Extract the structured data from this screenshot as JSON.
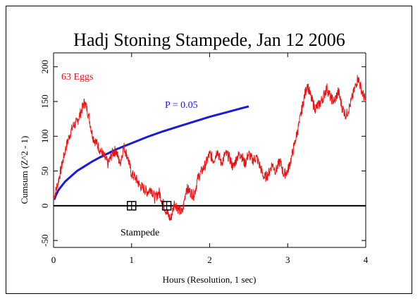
{
  "chart_data": {
    "type": "line",
    "title": "Hadj Stoning Stampede, Jan 12 2006",
    "xlabel": "Hours (Resolution, 1 sec)",
    "ylabel": "Cumsum (Z^2 - 1)",
    "xlim": [
      0,
      4
    ],
    "ylim": [
      -60,
      220
    ],
    "xticks": [
      0,
      1,
      2,
      3,
      4
    ],
    "yticks": [
      -50,
      0,
      50,
      100,
      150,
      200
    ],
    "grid": false,
    "series": [
      {
        "name": "63 Eggs",
        "color": "#ee1111",
        "x": [
          0,
          0.05,
          0.1,
          0.15,
          0.2,
          0.25,
          0.3,
          0.35,
          0.4,
          0.45,
          0.5,
          0.55,
          0.6,
          0.65,
          0.7,
          0.75,
          0.8,
          0.85,
          0.9,
          0.95,
          1.0,
          1.05,
          1.1,
          1.15,
          1.2,
          1.25,
          1.3,
          1.35,
          1.4,
          1.45,
          1.5,
          1.55,
          1.6,
          1.65,
          1.7,
          1.75,
          1.8,
          1.85,
          1.9,
          1.95,
          2.0,
          2.05,
          2.1,
          2.15,
          2.2,
          2.25,
          2.3,
          2.35,
          2.4,
          2.45,
          2.5,
          2.55,
          2.6,
          2.65,
          2.7,
          2.75,
          2.8,
          2.85,
          2.9,
          2.95,
          3.0,
          3.05,
          3.1,
          3.15,
          3.2,
          3.25,
          3.3,
          3.35,
          3.4,
          3.45,
          3.5,
          3.55,
          3.6,
          3.65,
          3.7,
          3.75,
          3.8,
          3.85,
          3.9,
          3.95,
          4.0
        ],
        "values": [
          10,
          30,
          55,
          80,
          100,
          115,
          120,
          135,
          150,
          130,
          100,
          90,
          80,
          70,
          60,
          75,
          80,
          60,
          85,
          70,
          45,
          40,
          30,
          25,
          20,
          25,
          10,
          20,
          5,
          -10,
          -20,
          5,
          -5,
          -10,
          25,
          20,
          15,
          40,
          50,
          60,
          75,
          65,
          80,
          60,
          75,
          70,
          55,
          70,
          75,
          60,
          75,
          65,
          70,
          55,
          40,
          45,
          60,
          50,
          65,
          45,
          50,
          70,
          95,
          120,
          150,
          175,
          155,
          140,
          145,
          155,
          170,
          155,
          150,
          165,
          140,
          130,
          145,
          165,
          185,
          165,
          150
        ]
      },
      {
        "name": "P = 0.05",
        "color": "#1a1adb",
        "x": [
          0.01,
          0.03,
          0.06,
          0.1,
          0.15,
          0.2,
          0.3,
          0.4,
          0.5,
          0.6,
          0.8,
          1.0,
          1.2,
          1.4,
          1.6,
          1.8,
          2.0,
          2.2,
          2.4,
          2.5
        ],
        "values": [
          9,
          15,
          22,
          28,
          35,
          40,
          50,
          57,
          64,
          70,
          81,
          90,
          99,
          107,
          114,
          121,
          128,
          134,
          140,
          143
        ]
      }
    ],
    "baseline": 0,
    "markers": [
      {
        "x": 1.0,
        "y": 0
      },
      {
        "x": 1.45,
        "y": 0
      }
    ],
    "annotations": {
      "series_label": "63 Eggs",
      "threshold_label": "P = 0.05",
      "event_label": "Stampede"
    },
    "colors": {
      "data": "#ee1111",
      "threshold": "#1a1adb",
      "axes": "#000000"
    }
  }
}
